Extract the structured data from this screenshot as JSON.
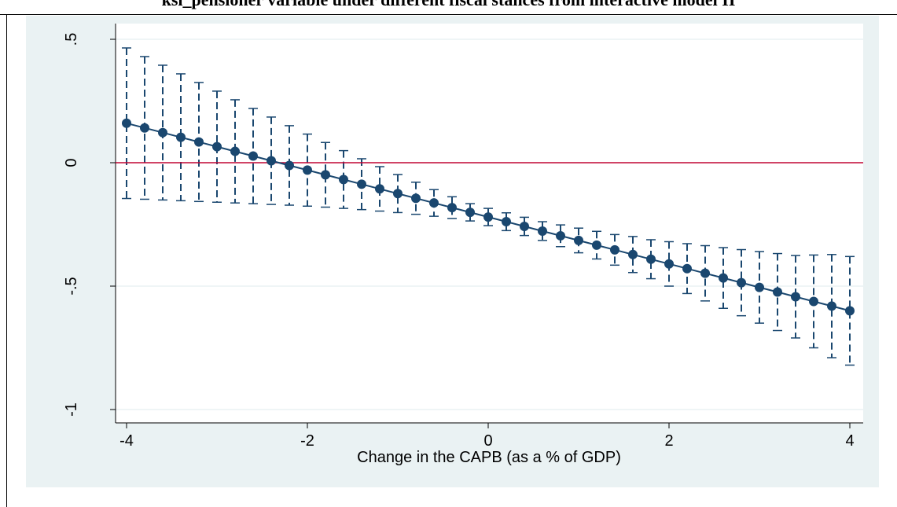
{
  "page_title": "ksi_pensioner variable under different fiscal stances from interactive model II",
  "colors": {
    "background_outer": "#eaf2f3",
    "plot_background": "#ffffff",
    "marker": "#1a476f",
    "line": "#1a476f",
    "ci": "#1a476f",
    "reference_line": "#c10534",
    "gridline": "#eaf2f3"
  },
  "chart_data": {
    "type": "line",
    "title": "",
    "xlabel": "Change in the CAPB (as a % of GDP)",
    "ylabel": "",
    "xlim": [
      -4,
      4
    ],
    "ylim": [
      -1,
      0.5
    ],
    "x_ticks": [
      -4,
      -2,
      0,
      2,
      4
    ],
    "x_tick_labels": [
      "-4",
      "-2",
      "0",
      "2",
      "4"
    ],
    "y_ticks": [
      -1,
      -0.5,
      0,
      0.5
    ],
    "y_tick_labels": [
      "-1",
      "-.5",
      "0",
      ".5"
    ],
    "reference_line_y": 0,
    "grid": true,
    "series": [
      {
        "type": "line-with-markers",
        "x": [
          -4.0,
          -3.8,
          -3.6,
          -3.4,
          -3.2,
          -3.0,
          -2.8,
          -2.6,
          -2.4,
          -2.2,
          -2.0,
          -1.8,
          -1.6,
          -1.4,
          -1.2,
          -1.0,
          -0.8,
          -0.6,
          -0.4,
          -0.2,
          0.0,
          0.2,
          0.4,
          0.6,
          0.8,
          1.0,
          1.2,
          1.4,
          1.6,
          1.8,
          2.0,
          2.2,
          2.4,
          2.6,
          2.8,
          3.0,
          3.2,
          3.4,
          3.6,
          3.8,
          4.0
        ],
        "y": [
          0.16,
          0.141,
          0.122,
          0.103,
          0.084,
          0.065,
          0.046,
          0.027,
          0.008,
          -0.011,
          -0.03,
          -0.049,
          -0.068,
          -0.087,
          -0.106,
          -0.125,
          -0.144,
          -0.163,
          -0.182,
          -0.201,
          -0.22,
          -0.239,
          -0.258,
          -0.277,
          -0.296,
          -0.315,
          -0.334,
          -0.353,
          -0.372,
          -0.391,
          -0.41,
          -0.429,
          -0.448,
          -0.467,
          -0.486,
          -0.505,
          -0.524,
          -0.543,
          -0.562,
          -0.581,
          -0.6
        ]
      },
      {
        "type": "error-bars",
        "x": [
          -4.0,
          -3.8,
          -3.6,
          -3.4,
          -3.2,
          -3.0,
          -2.8,
          -2.6,
          -2.4,
          -2.2,
          -2.0,
          -1.8,
          -1.6,
          -1.4,
          -1.2,
          -1.0,
          -0.8,
          -0.6,
          -0.4,
          -0.2,
          0.0,
          0.2,
          0.4,
          0.6,
          0.8,
          1.0,
          1.2,
          1.4,
          1.6,
          1.8,
          2.0,
          2.2,
          2.4,
          2.6,
          2.8,
          3.0,
          3.2,
          3.4,
          3.6,
          3.8,
          4.0
        ],
        "lower": [
          -0.145,
          -0.148,
          -0.151,
          -0.154,
          -0.157,
          -0.16,
          -0.163,
          -0.166,
          -0.169,
          -0.172,
          -0.176,
          -0.18,
          -0.185,
          -0.19,
          -0.196,
          -0.202,
          -0.209,
          -0.217,
          -0.226,
          -0.236,
          -0.255,
          -0.275,
          -0.295,
          -0.315,
          -0.34,
          -0.365,
          -0.39,
          -0.415,
          -0.445,
          -0.47,
          -0.5,
          -0.53,
          -0.56,
          -0.59,
          -0.62,
          -0.65,
          -0.68,
          -0.71,
          -0.75,
          -0.79,
          -0.82
        ],
        "upper": [
          0.465,
          0.43,
          0.395,
          0.36,
          0.325,
          0.29,
          0.255,
          0.22,
          0.185,
          0.15,
          0.116,
          0.082,
          0.049,
          0.016,
          -0.016,
          -0.048,
          -0.079,
          -0.109,
          -0.138,
          -0.166,
          -0.185,
          -0.203,
          -0.221,
          -0.239,
          -0.252,
          -0.265,
          -0.278,
          -0.291,
          -0.299,
          -0.312,
          -0.32,
          -0.328,
          -0.336,
          -0.344,
          -0.352,
          -0.36,
          -0.368,
          -0.376,
          -0.374,
          -0.372,
          -0.38
        ]
      }
    ]
  }
}
